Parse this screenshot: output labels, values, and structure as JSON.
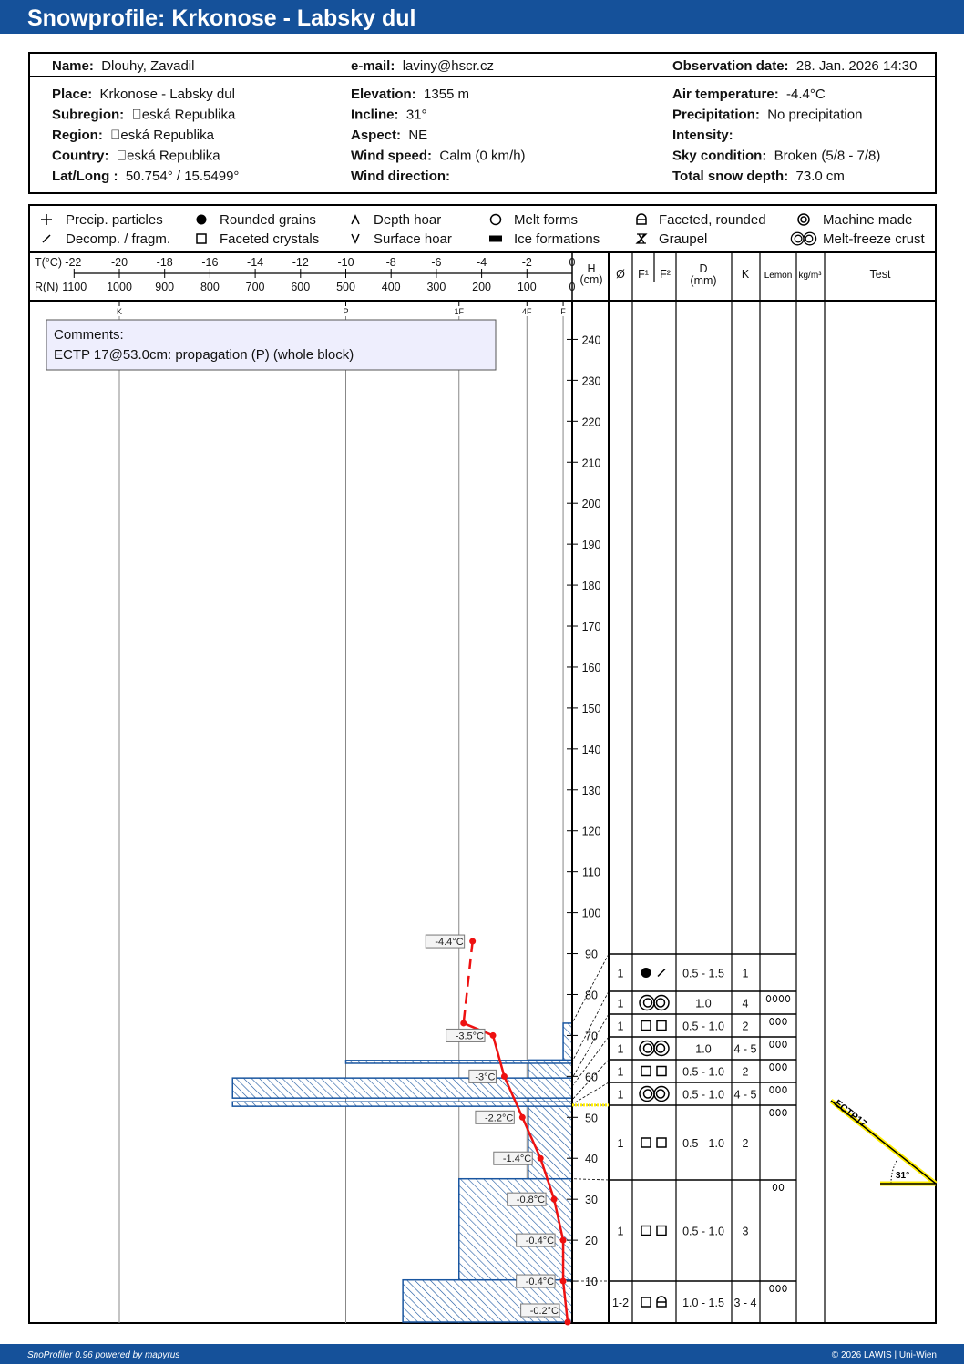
{
  "title": "Snowprofile: Krkonose - Labsky dul",
  "header": {
    "top": [
      {
        "label": "Name:",
        "value": "Dlouhy, Zavadil"
      },
      {
        "label": "e-mail:",
        "value": "laviny@hscr.cz"
      },
      {
        "label": "Observation date:",
        "value": "28. Jan. 2026 14:30"
      }
    ],
    "columns": [
      [
        {
          "label": "Place:",
          "value": "Krkonose - Labsky dul"
        },
        {
          "label": "Subregion:",
          "value": "\u0000eská Republika"
        },
        {
          "label": "Region:",
          "value": "\u0000eská Republika"
        },
        {
          "label": "Country:",
          "value": "\u0000eská Republika"
        },
        {
          "label": "Lat/Long :",
          "value": "50.754° / 15.5499°"
        }
      ],
      [
        {
          "label": "Elevation:",
          "value": "1355 m"
        },
        {
          "label": "Incline:",
          "value": "31°"
        },
        {
          "label": "Aspect:",
          "value": "NE"
        },
        {
          "label": "Wind speed:",
          "value": "Calm (0 km/h)"
        },
        {
          "label": "Wind direction:",
          "value": ""
        }
      ],
      [
        {
          "label": "Air temperature:",
          "value": "-4.4°C"
        },
        {
          "label": "Precipitation:",
          "value": "No precipitation"
        },
        {
          "label": "Intensity:",
          "value": ""
        },
        {
          "label": "Sky condition:",
          "value": "Broken (5/8 - 7/8)"
        },
        {
          "label": "Total snow depth:",
          "value": "73.0 cm"
        }
      ]
    ]
  },
  "legend": [
    {
      "symbol": "precip-particles",
      "label": "Precip. particles"
    },
    {
      "symbol": "decomp-fragm",
      "label": "Decomp. / fragm."
    },
    {
      "symbol": "rounded-grains",
      "label": "Rounded grains"
    },
    {
      "symbol": "faceted-crystals",
      "label": "Faceted crystals"
    },
    {
      "symbol": "depth-hoar",
      "label": "Depth hoar"
    },
    {
      "symbol": "surface-hoar",
      "label": "Surface hoar"
    },
    {
      "symbol": "melt-forms",
      "label": "Melt forms"
    },
    {
      "symbol": "ice-formations",
      "label": "Ice formations"
    },
    {
      "symbol": "faceted-rounded",
      "label": "Faceted, rounded"
    },
    {
      "symbol": "graupel",
      "label": "Graupel"
    },
    {
      "symbol": "machine-made",
      "label": "Machine made"
    },
    {
      "symbol": "melt-freeze-crust",
      "label": "Melt-freeze crust"
    }
  ],
  "table_header": {
    "diameter": "Ø",
    "f1": "F¹",
    "f2": "F²",
    "d": "D",
    "d_unit": "(mm)",
    "k": "K",
    "lemon": "Lemon",
    "density": "kg/m³",
    "test": "Test"
  },
  "chart_data": {
    "type": "snow-profile",
    "temp_axis": {
      "label": "T(°C)",
      "ticks": [
        -22,
        -20,
        -18,
        -16,
        -14,
        -12,
        -10,
        -8,
        -6,
        -4,
        -2,
        0
      ],
      "range": [
        -22,
        0
      ]
    },
    "resistance_axis": {
      "label": "R(N)",
      "ticks": [
        1100,
        1000,
        900,
        800,
        700,
        600,
        500,
        400,
        300,
        200,
        100,
        0
      ],
      "range": [
        1100,
        0
      ]
    },
    "height_axis": {
      "label": "H",
      "unit": "(cm)",
      "ticks": [
        10,
        20,
        30,
        40,
        50,
        60,
        70,
        80,
        90,
        100,
        110,
        120,
        130,
        140,
        150,
        160,
        170,
        180,
        190,
        200,
        210,
        220,
        230,
        240
      ],
      "range": [
        0,
        250
      ]
    },
    "hand_hardness": [
      {
        "label": "K",
        "value": 1000
      },
      {
        "label": "P",
        "value": 500
      },
      {
        "label": "1F",
        "value": 250
      },
      {
        "label": "4F",
        "value": 100
      },
      {
        "label": "F",
        "value": 20
      }
    ],
    "hardness_layers": [
      {
        "bottom": 0,
        "top": 10.3,
        "resistance": 374
      },
      {
        "bottom": 10.3,
        "top": 35,
        "resistance": 250
      },
      {
        "bottom": 35,
        "top": 64,
        "resistance": 97
      },
      {
        "bottom": 63.2,
        "top": 63.9,
        "resistance": 500
      },
      {
        "bottom": 54.7,
        "top": 59.6,
        "resistance": 750
      },
      {
        "bottom": 52.7,
        "top": 53.8,
        "resistance": 750
      },
      {
        "bottom": 64,
        "top": 73,
        "resistance": 20
      }
    ],
    "temperature": [
      {
        "h": 93,
        "t": -4.4,
        "label": "-4.4°C",
        "air": true
      },
      {
        "h": 73,
        "t": -4.8,
        "label": ""
      },
      {
        "h": 70,
        "t": -3.5,
        "label": "-3.5°C"
      },
      {
        "h": 60,
        "t": -3.0,
        "label": "-3°C"
      },
      {
        "h": 50,
        "t": -2.2,
        "label": "-2.2°C"
      },
      {
        "h": 40,
        "t": -1.4,
        "label": "-1.4°C"
      },
      {
        "h": 30,
        "t": -0.8,
        "label": "-0.8°C"
      },
      {
        "h": 20,
        "t": -0.4,
        "label": "-0.4°C"
      },
      {
        "h": 10,
        "t": -0.4,
        "label": "-0.4°C"
      },
      {
        "h": 0,
        "t": -0.2,
        "label": "-0.2°C"
      }
    ],
    "layers": [
      {
        "top": 73,
        "diameter": "1",
        "grains": [
          "rounded-grains",
          "decomp-fragm"
        ],
        "size": "0.5 - 1.5",
        "k": "1",
        "lemons": 0
      },
      {
        "top": 63.6,
        "diameter": "1",
        "grains": [
          "melt-freeze-crust"
        ],
        "size": "1.0",
        "k": "4",
        "lemons": 4
      },
      {
        "top": 59.6,
        "diameter": "1",
        "grains": [
          "faceted-crystals",
          "faceted-crystals"
        ],
        "size": "0.5 - 1.0",
        "k": "2",
        "lemons": 3
      },
      {
        "top": 57.6,
        "diameter": "1",
        "grains": [
          "melt-freeze-crust"
        ],
        "size": "1.0",
        "k": "4 - 5",
        "lemons": 3
      },
      {
        "top": 54.3,
        "diameter": "1",
        "grains": [
          "faceted-crystals",
          "faceted-crystals"
        ],
        "size": "0.5 - 1.0",
        "k": "2",
        "lemons": 3
      },
      {
        "top": 53.2,
        "diameter": "1",
        "grains": [
          "melt-freeze-crust"
        ],
        "size": "0.5 - 1.0",
        "k": "4 - 5",
        "lemons": 3
      },
      {
        "top": 53,
        "diameter": "1",
        "grains": [
          "faceted-crystals",
          "faceted-crystals"
        ],
        "size": "0.5 - 1.0",
        "k": "2",
        "lemons": 3
      },
      {
        "top": 35,
        "diameter": "1",
        "grains": [
          "faceted-crystals",
          "faceted-crystals"
        ],
        "size": "0.5 - 1.0",
        "k": "3",
        "lemons": 2
      },
      {
        "top": 10,
        "diameter": "1-2",
        "grains": [
          "faceted-crystals",
          "faceted-rounded"
        ],
        "size": "1.0 - 1.5",
        "k": "3 - 4",
        "lemons": 3
      }
    ],
    "test": {
      "name": "ECTP17",
      "height": 53,
      "slope": "31°"
    }
  },
  "comments": {
    "title": "Comments:",
    "text": "ECTP 17@53.0cm: propagation (P) (whole block)"
  },
  "footer": {
    "left": "SnoProfiler 0.96 powered by mapyrus",
    "right": "© 2026 LAWIS | Uni-Wien"
  },
  "colors": {
    "brand": "#15519a",
    "hatch": "#1a56a0",
    "temperature": "#ee1111",
    "test": "#ffee00"
  }
}
